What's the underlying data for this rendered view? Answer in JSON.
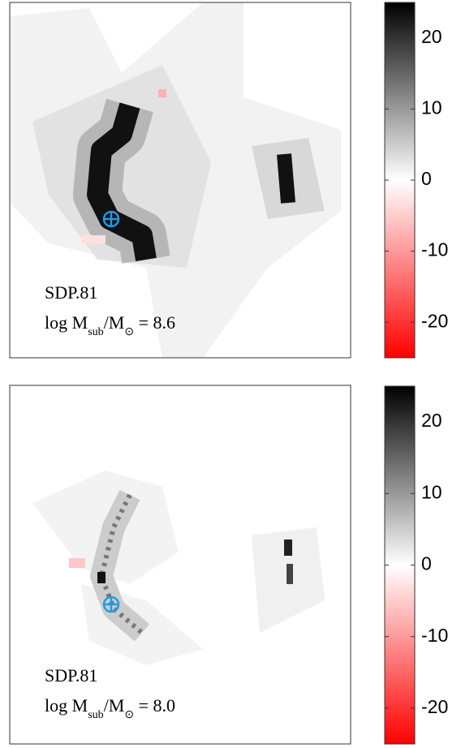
{
  "chart_data": [
    {
      "type": "heatmap",
      "annotation": "SDP.81",
      "mass_label": [
        "log M",
        "sub",
        "/M",
        "⊙",
        " = ",
        "8.6"
      ],
      "colorbar": {
        "clim": [
          -25,
          25
        ],
        "ticks": [
          20,
          10,
          0,
          -10,
          -20
        ],
        "colors": [
          "#ff0000",
          "#ffffff",
          "#000000"
        ]
      }
    },
    {
      "type": "heatmap",
      "annotation": "SDP.81",
      "mass_label": [
        "log M",
        "sub",
        "/M",
        "⊙",
        " = ",
        "8.0"
      ],
      "colorbar": {
        "clim": [
          -25,
          25
        ],
        "ticks": [
          20,
          10,
          0,
          -10,
          -20
        ],
        "colors": [
          "#ff0000",
          "#ffffff",
          "#000000"
        ]
      }
    }
  ]
}
